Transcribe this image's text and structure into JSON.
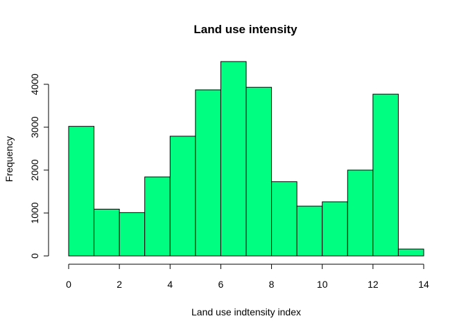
{
  "chart_data": {
    "type": "bar",
    "title": "Land use intensity",
    "xlabel": "Land use indtensity index",
    "ylabel": "Frequency",
    "bin_edges": [
      0,
      1,
      2,
      3,
      4,
      5,
      6,
      7,
      8,
      9,
      10,
      11,
      12,
      13,
      14
    ],
    "values": [
      3020,
      1090,
      1010,
      1840,
      2790,
      3870,
      4530,
      3930,
      1730,
      1160,
      1260,
      2000,
      3770,
      160
    ],
    "xlim": [
      0,
      14
    ],
    "ylim": [
      0,
      4530
    ],
    "xticks": [
      "0",
      "2",
      "4",
      "6",
      "8",
      "10",
      "12",
      "14"
    ],
    "yticks": [
      "0",
      "1000",
      "2000",
      "3000",
      "4000"
    ],
    "bar_color": "#00FF80",
    "grid": false,
    "legend": "none"
  }
}
